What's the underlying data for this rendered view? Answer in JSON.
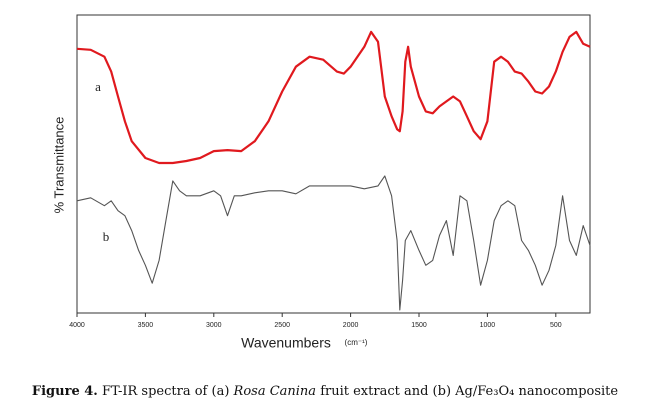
{
  "chart_data": {
    "type": "line",
    "ylabel": "% Transmittance",
    "xlabel": "Wavenumbers",
    "xlabel_unit": "(cm⁻¹)",
    "xlim": [
      4000,
      250
    ],
    "ylim": [
      0,
      300
    ],
    "xticks": [
      4000,
      3500,
      3000,
      2500,
      2000,
      1500,
      1000,
      500
    ],
    "series": [
      {
        "name": "a",
        "color": "#e0191e",
        "x": [
          4000,
          3900,
          3800,
          3750,
          3700,
          3650,
          3600,
          3500,
          3400,
          3300,
          3200,
          3100,
          3000,
          2900,
          2800,
          2700,
          2600,
          2500,
          2400,
          2300,
          2200,
          2100,
          2050,
          2000,
          1900,
          1850,
          1800,
          1750,
          1700,
          1660,
          1640,
          1620,
          1600,
          1580,
          1560,
          1500,
          1450,
          1400,
          1350,
          1300,
          1250,
          1200,
          1150,
          1100,
          1050,
          1000,
          950,
          900,
          850,
          800,
          750,
          700,
          650,
          600,
          550,
          500,
          450,
          400,
          350,
          300,
          250
        ],
        "values": [
          266,
          265,
          258,
          243,
          218,
          193,
          173,
          156,
          151,
          151,
          153,
          156,
          163,
          164,
          163,
          173,
          193,
          223,
          248,
          258,
          255,
          243,
          241,
          248,
          268,
          283,
          273,
          218,
          198,
          185,
          183,
          203,
          253,
          268,
          248,
          218,
          203,
          201,
          208,
          213,
          218,
          213,
          198,
          183,
          175,
          193,
          253,
          258,
          253,
          243,
          241,
          233,
          223,
          221,
          228,
          243,
          263,
          278,
          283,
          271,
          268
        ]
      },
      {
        "name": "b",
        "color": "#555555",
        "x": [
          4000,
          3900,
          3800,
          3750,
          3700,
          3650,
          3600,
          3550,
          3500,
          3450,
          3400,
          3350,
          3300,
          3250,
          3200,
          3100,
          3000,
          2950,
          2900,
          2850,
          2800,
          2700,
          2600,
          2500,
          2400,
          2300,
          2200,
          2100,
          2000,
          1900,
          1800,
          1750,
          1700,
          1660,
          1640,
          1620,
          1600,
          1560,
          1500,
          1450,
          1400,
          1350,
          1300,
          1250,
          1200,
          1150,
          1100,
          1050,
          1000,
          950,
          900,
          850,
          800,
          750,
          700,
          650,
          600,
          550,
          500,
          450,
          400,
          350,
          300,
          250
        ],
        "values": [
          113,
          116,
          108,
          113,
          103,
          98,
          83,
          63,
          48,
          30,
          53,
          93,
          133,
          123,
          118,
          118,
          123,
          118,
          98,
          118,
          118,
          121,
          123,
          123,
          120,
          128,
          128,
          128,
          128,
          125,
          128,
          138,
          118,
          73,
          3,
          33,
          73,
          83,
          63,
          48,
          53,
          78,
          93,
          58,
          118,
          113,
          73,
          28,
          53,
          93,
          108,
          113,
          108,
          73,
          63,
          48,
          28,
          43,
          68,
          118,
          73,
          58,
          88,
          68
        ]
      }
    ]
  },
  "caption": {
    "label": "Figure 4.",
    "before": "FT-IR spectra of (a)",
    "italic": "Rosa Canina",
    "after": "fruit extract and (b) Ag/Fe₃O₄ nanocomposite"
  }
}
